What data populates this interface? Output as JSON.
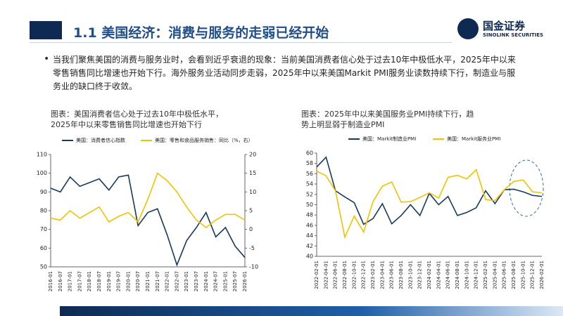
{
  "header": {
    "title": "1.1 美国经济：消费与服务的走弱已经开始",
    "logo": "国金证券",
    "logo_en": "SINOLINK SECURITIES"
  },
  "bullet": "当我们聚焦美国的消费与服务业时，会看到近乎衰退的现象：当前美国消费者信心处于过去10年中极低水平，2025年中以来零售销售同比增速也开始下行。海外服务业活动同步走弱，2025年中以来美国Markit PMI服务业读数持续下行，制造业与服务业的缺口终于收敛。",
  "chart_data": [
    {
      "type": "line",
      "title": "图表：美国消费者信心处于过去10年中极低水平，2025年中以来零售销售同比增速也开始下行",
      "categories": [
        "2016-01",
        "2016-07",
        "2017-01",
        "2017-07",
        "2018-01",
        "2018-07",
        "2019-01",
        "2019-07",
        "2020-01",
        "2020-07",
        "2021-01",
        "2021-07",
        "2022-01",
        "2022-07",
        "2023-01",
        "2023-07",
        "2024-01",
        "2024-07",
        "2025-01",
        "2025-07",
        "2026-01"
      ],
      "series": [
        {
          "name": "美国：消费者信心指数",
          "color": "#173a5e",
          "values": [
            92,
            90,
            98,
            93,
            95,
            97,
            91,
            98,
            99,
            72,
            79,
            81,
            67,
            51,
            64,
            71,
            79,
            66,
            71,
            61,
            55
          ]
        },
        {
          "name": "美国：零售和食品服务销售：同比（%，右）",
          "color": "#f2c200",
          "axis": "y2",
          "values": [
            3,
            2.5,
            5,
            3,
            4.5,
            6,
            2,
            3.5,
            4.5,
            2,
            8,
            15,
            13,
            10,
            6,
            2.5,
            0.5,
            2.5,
            4,
            4,
            2.5
          ]
        }
      ],
      "ylim": [
        50,
        110
      ],
      "yticks": [
        50,
        60,
        70,
        80,
        90,
        100,
        110
      ],
      "y2lim": [
        -10,
        20
      ],
      "y2ticks": [
        -10,
        -5,
        0,
        5,
        10,
        15,
        20
      ]
    },
    {
      "type": "line",
      "title": "图表：2025年中以来美国服务业PMI持续下行，趋势上明显弱于制造业PMI",
      "categories": [
        "2022-02-01",
        "2022-04-01",
        "2022-06-01",
        "2022-08-01",
        "2022-10-01",
        "2022-12-01",
        "2023-02-01",
        "2023-04-01",
        "2023-06-01",
        "2023-08-01",
        "2023-10-01",
        "2023-12-01",
        "2024-02-01",
        "2024-04-01",
        "2024-06-01",
        "2024-08-01",
        "2024-10-01",
        "2024-12-01",
        "2025-02-01",
        "2025-04-01",
        "2025-06-01",
        "2025-08-01",
        "2025-10-01",
        "2025-12-01",
        "2026-02-01"
      ],
      "series": [
        {
          "name": "美国：Markit制造业PMI",
          "color": "#173a5e",
          "values": [
            57.3,
            59.2,
            52.7,
            51.5,
            50.4,
            46.2,
            47.3,
            50.2,
            46.3,
            47.9,
            50.0,
            47.9,
            52.2,
            50.0,
            51.6,
            47.9,
            48.5,
            49.4,
            52.7,
            50.2,
            52.9,
            53.0,
            52.5,
            51.8,
            51.6
          ]
        },
        {
          "name": "美国：Markit服务业PMI",
          "color": "#f2c200",
          "values": [
            56.5,
            55.6,
            52.7,
            43.7,
            47.8,
            44.7,
            50.6,
            53.6,
            54.4,
            50.5,
            50.6,
            51.4,
            52.3,
            51.3,
            55.3,
            55.7,
            55.0,
            56.8,
            51.0,
            50.8,
            52.9,
            54.5,
            54.8,
            52.5,
            52.3
          ]
        }
      ],
      "ylim": [
        40,
        60
      ],
      "yticks": [
        40,
        42,
        44,
        46,
        48,
        50,
        52,
        54,
        56,
        58,
        60
      ]
    }
  ]
}
